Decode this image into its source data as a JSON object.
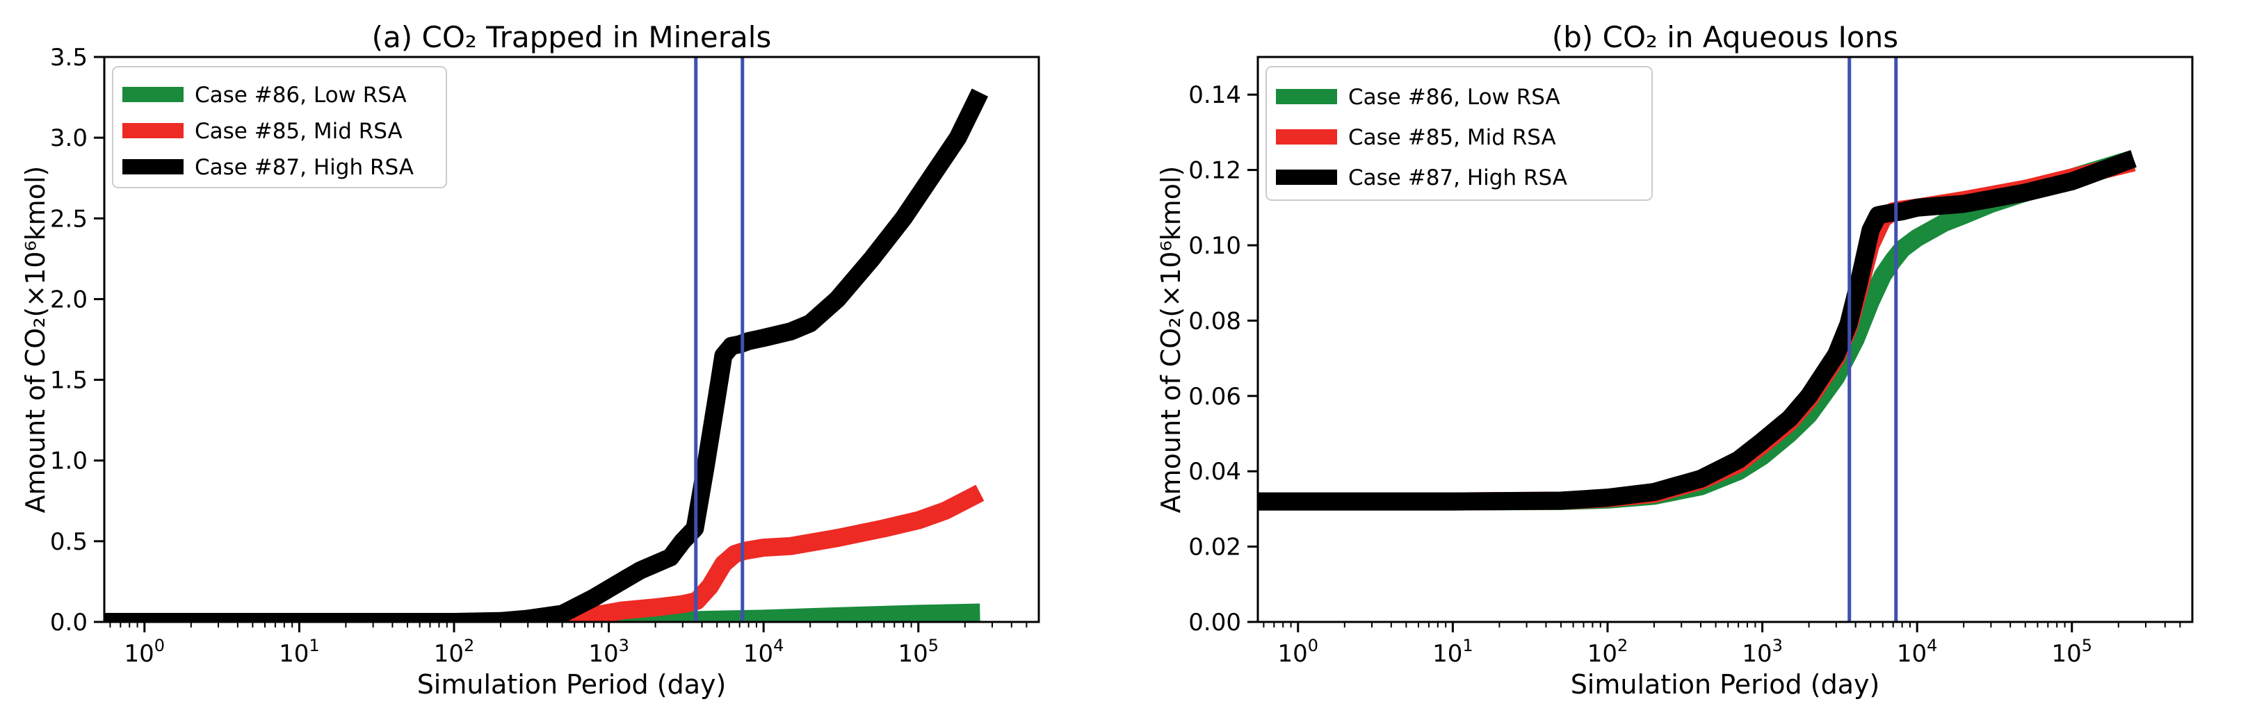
{
  "chart_data": [
    {
      "type": "line",
      "title": "(a) CO₂ Trapped in Minerals",
      "xlabel": "Simulation Period (day)",
      "ylabel": "Amount of CO₂(×10⁶kmol)",
      "x_scale": "log",
      "xlim": [
        0.55,
        600000
      ],
      "ylim": [
        0,
        3.5
      ],
      "x_ticks": [
        {
          "v": 1,
          "e": "0"
        },
        {
          "v": 10,
          "e": "1"
        },
        {
          "v": 100,
          "e": "2"
        },
        {
          "v": 1000,
          "e": "3"
        },
        {
          "v": 10000,
          "e": "4"
        },
        {
          "v": 100000,
          "e": "5"
        }
      ],
      "y_ticks": [
        {
          "v": 0,
          "t": "0.0"
        },
        {
          "v": 0.5,
          "t": "0.5"
        },
        {
          "v": 1.0,
          "t": "1.0"
        },
        {
          "v": 1.5,
          "t": "1.5"
        },
        {
          "v": 2.0,
          "t": "2.0"
        },
        {
          "v": 2.5,
          "t": "2.5"
        },
        {
          "v": 3.0,
          "t": "3.0"
        },
        {
          "v": 3.5,
          "t": "3.5"
        }
      ],
      "vlines": [
        3650,
        7300
      ],
      "vline_color": "#4050b0",
      "legend_loc": "upper left",
      "grid": false,
      "series": [
        {
          "name": "Case #86, Low RSA",
          "color": "#1a8a3c",
          "x": [
            0.55,
            100,
            500,
            1000,
            3000,
            10000,
            30000,
            100000,
            250000
          ],
          "y": [
            0.0,
            0.0,
            0.0,
            0.003,
            0.01,
            0.02,
            0.035,
            0.05,
            0.058
          ]
        },
        {
          "name": "Case #85, Mid RSA",
          "color": "#ee2a24",
          "x": [
            0.55,
            200,
            500,
            800,
            1200,
            2000,
            3000,
            3700,
            4500,
            5500,
            6500,
            7500,
            10000,
            15000,
            30000,
            60000,
            100000,
            150000,
            250000
          ],
          "y": [
            0.0,
            0.0,
            0.01,
            0.04,
            0.07,
            0.09,
            0.11,
            0.13,
            0.22,
            0.36,
            0.42,
            0.44,
            0.46,
            0.47,
            0.52,
            0.58,
            0.63,
            0.69,
            0.8
          ]
        },
        {
          "name": "Case #87, High RSA",
          "color": "#000000",
          "x": [
            0.55,
            100,
            200,
            300,
            500,
            800,
            1200,
            1600,
            2000,
            2500,
            3000,
            3600,
            4200,
            5000,
            5500,
            6200,
            7000,
            8000,
            10000,
            15000,
            20000,
            30000,
            50000,
            80000,
            120000,
            180000,
            250000
          ],
          "y": [
            0.0,
            0.0,
            0.005,
            0.02,
            0.05,
            0.15,
            0.25,
            0.32,
            0.36,
            0.4,
            0.5,
            0.58,
            0.95,
            1.4,
            1.65,
            1.71,
            1.72,
            1.74,
            1.76,
            1.8,
            1.85,
            2.0,
            2.25,
            2.5,
            2.75,
            3.0,
            3.28
          ]
        }
      ]
    },
    {
      "type": "line",
      "title": "(b) CO₂ in Aqueous Ions",
      "xlabel": "Simulation Period (day)",
      "ylabel": "Amount of CO₂(×10⁶kmol)",
      "x_scale": "log",
      "xlim": [
        0.55,
        600000
      ],
      "ylim": [
        0,
        0.15
      ],
      "x_ticks": [
        {
          "v": 1,
          "e": "0"
        },
        {
          "v": 10,
          "e": "1"
        },
        {
          "v": 100,
          "e": "2"
        },
        {
          "v": 1000,
          "e": "3"
        },
        {
          "v": 10000,
          "e": "4"
        },
        {
          "v": 100000,
          "e": "5"
        }
      ],
      "y_ticks": [
        {
          "v": 0,
          "t": "0.00"
        },
        {
          "v": 0.02,
          "t": "0.02"
        },
        {
          "v": 0.04,
          "t": "0.04"
        },
        {
          "v": 0.06,
          "t": "0.06"
        },
        {
          "v": 0.08,
          "t": "0.08"
        },
        {
          "v": 0.1,
          "t": "0.10"
        },
        {
          "v": 0.12,
          "t": "0.12"
        },
        {
          "v": 0.14,
          "t": "0.14"
        }
      ],
      "vlines": [
        3650,
        7300
      ],
      "vline_color": "#4050b0",
      "legend_loc": "upper left",
      "grid": false,
      "series": [
        {
          "name": "Case #86, Low RSA",
          "color": "#1a8a3c",
          "x": [
            0.55,
            10,
            50,
            100,
            200,
            400,
            700,
            1000,
            1500,
            2000,
            3000,
            4000,
            5000,
            6000,
            7000,
            8000,
            10000,
            15000,
            20000,
            30000,
            50000,
            100000,
            250000
          ],
          "y": [
            0.032,
            0.032,
            0.0321,
            0.0325,
            0.0335,
            0.036,
            0.04,
            0.044,
            0.05,
            0.055,
            0.065,
            0.075,
            0.085,
            0.092,
            0.096,
            0.099,
            0.102,
            0.106,
            0.108,
            0.111,
            0.114,
            0.118,
            0.123
          ]
        },
        {
          "name": "Case #85, Mid RSA",
          "color": "#ee2a24",
          "x": [
            0.55,
            10,
            50,
            100,
            200,
            400,
            700,
            1000,
            1500,
            2000,
            3000,
            3600,
            4200,
            5000,
            6000,
            7000,
            8000,
            10000,
            20000,
            50000,
            100000,
            250000
          ],
          "y": [
            0.032,
            0.032,
            0.0322,
            0.0328,
            0.034,
            0.0375,
            0.042,
            0.047,
            0.053,
            0.059,
            0.07,
            0.078,
            0.088,
            0.1,
            0.107,
            0.109,
            0.1095,
            0.11,
            0.112,
            0.115,
            0.118,
            0.122
          ]
        },
        {
          "name": "Case #87, High RSA",
          "color": "#000000",
          "x": [
            0.55,
            10,
            50,
            100,
            200,
            400,
            700,
            1000,
            1500,
            2000,
            3000,
            3600,
            4200,
            5000,
            5600,
            6500,
            8000,
            10000,
            20000,
            50000,
            100000,
            250000
          ],
          "y": [
            0.032,
            0.032,
            0.0322,
            0.033,
            0.0345,
            0.038,
            0.043,
            0.048,
            0.054,
            0.06,
            0.071,
            0.079,
            0.09,
            0.104,
            0.108,
            0.1085,
            0.109,
            0.11,
            0.111,
            0.114,
            0.117,
            0.123
          ]
        }
      ]
    }
  ]
}
